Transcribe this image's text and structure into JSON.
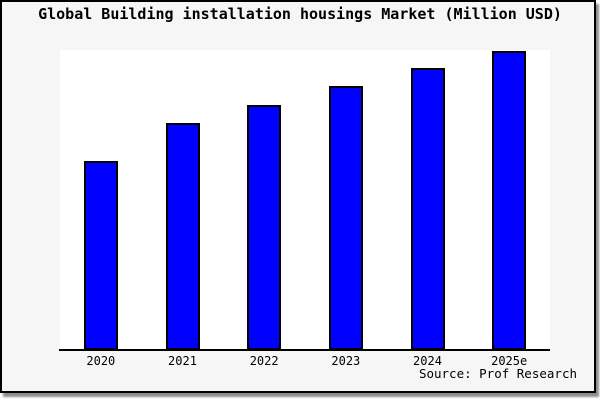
{
  "title": "Global Building installation housings Market (Million USD)",
  "source": {
    "label": "Source: Prof Research"
  },
  "colors": {
    "bar_fill": "#0000ff",
    "bar_border": "#000000",
    "frame_background": "#f6f6f6",
    "plot_background": "#ffffff",
    "axis": "#000000",
    "frame_border": "#000000",
    "frame_shadow": "#8e8e8e",
    "text": "#000000"
  },
  "chart_data": {
    "type": "bar",
    "title": "Global Building installation housings Market (Million USD)",
    "categories": [
      "2020",
      "2021",
      "2022",
      "2023",
      "2024",
      "2025e"
    ],
    "values": [
      189,
      227,
      245,
      264,
      282,
      299
    ],
    "xlabel": "",
    "ylabel": "",
    "ylim": [
      0,
      300
    ],
    "y_axis_ticks": "none (y-axis unlabeled; values are relative bar heights in px of a 300px-tall plot)",
    "gridlines": false,
    "legend": "none",
    "annotation": "Source: Prof Research"
  }
}
